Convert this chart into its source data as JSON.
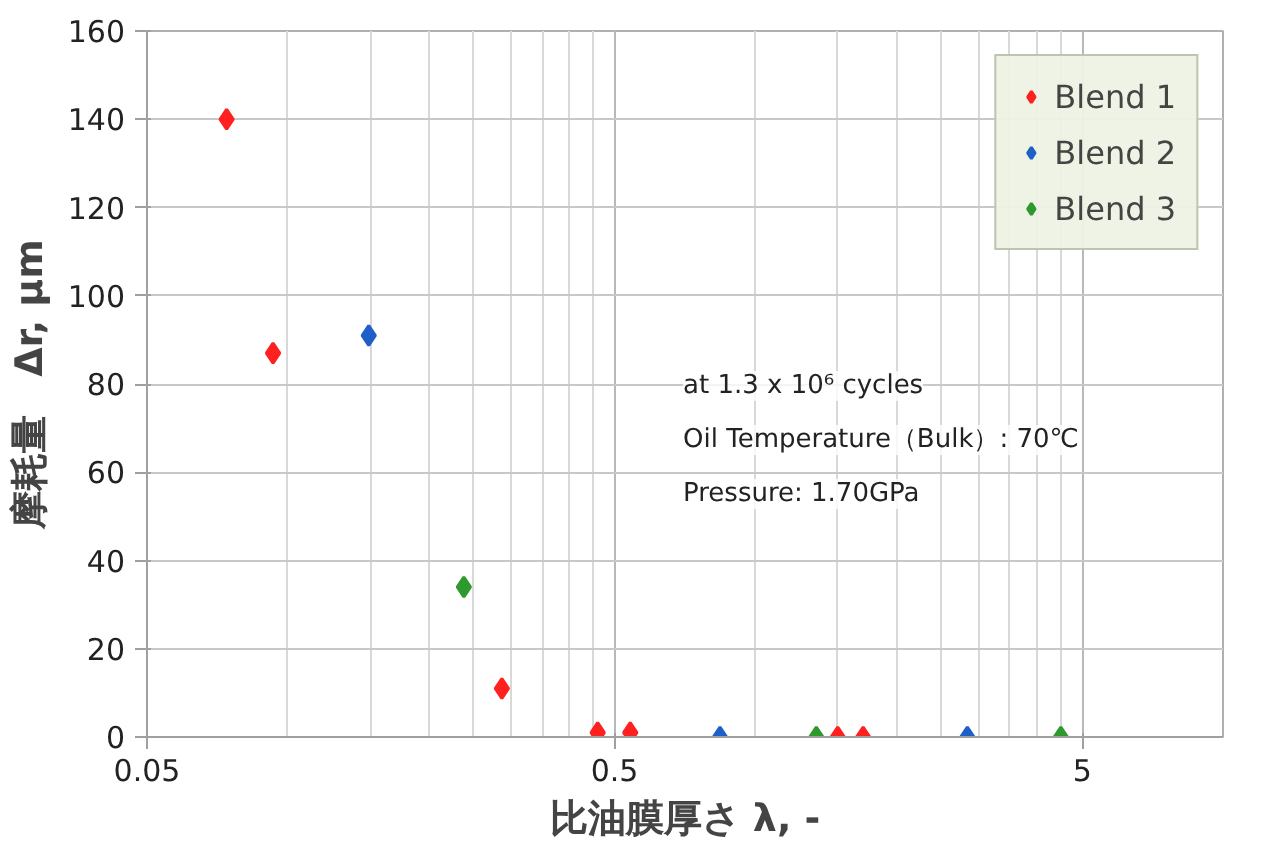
{
  "chart_data": {
    "type": "scatter",
    "xlabel": "比油膜厚さ λ, -",
    "ylabel": "摩耗量　Δr, µm",
    "annotations": [
      "at 1.3 x 10⁶ cycles",
      "Oil Temperature（Bulk）: 70℃",
      "Pressure: 1.70GPa"
    ],
    "series": [
      {
        "name": "Blend 1",
        "color": "#ff2020",
        "x": [
          0.074,
          0.093,
          0.287,
          0.46,
          0.54,
          1.5,
          1.7
        ],
        "values": [
          140,
          87,
          11,
          1,
          1,
          0,
          0
        ]
      },
      {
        "name": "Blend 2",
        "color": "#1f5fc8",
        "x": [
          0.149,
          0.84,
          2.84
        ],
        "values": [
          91,
          0,
          0
        ]
      },
      {
        "name": "Blend 3",
        "color": "#2e9a2e",
        "x": [
          0.238,
          1.35,
          4.5
        ],
        "values": [
          34,
          0,
          0
        ]
      }
    ],
    "log": "x",
    "xlim": [
      0.05,
      10
    ],
    "xticks": [
      0.05,
      0.5,
      5
    ],
    "ylim": [
      0,
      160
    ],
    "yticks": [
      0,
      20,
      40,
      60,
      80,
      100,
      120,
      140,
      160
    ],
    "grid": true,
    "legend": "top right",
    "marker": "diamond"
  }
}
